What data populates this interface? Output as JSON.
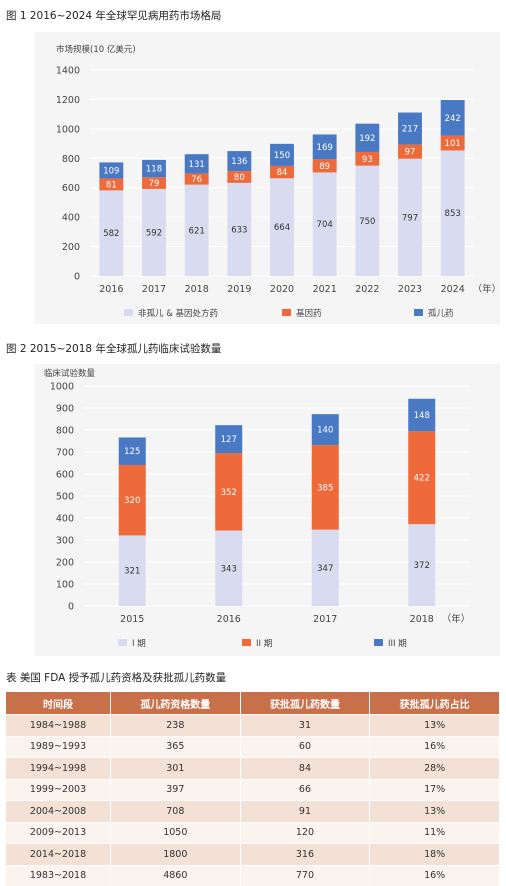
{
  "figure1": {
    "title": "图 1   2016~2024 年全球罕见病用药市场格局"
  },
  "figure2": {
    "title": "图 2   2015~2018 年全球孤儿药临床试验数量"
  },
  "table_section": {
    "title": "表    美国 FDA 授予孤儿药资格及获批孤儿药数量",
    "headers": [
      "时间段",
      "孤儿药资格数量",
      "获批孤儿药数量",
      "获批孤儿药占比"
    ],
    "rows": [
      [
        "1984~1988",
        "238",
        "31",
        "13%"
      ],
      [
        "1989~1993",
        "365",
        "60",
        "16%"
      ],
      [
        "1994~1998",
        "301",
        "84",
        "28%"
      ],
      [
        "1999~2003",
        "397",
        "66",
        "17%"
      ],
      [
        "2004~2008",
        "708",
        "91",
        "13%"
      ],
      [
        "2009~2013",
        "1050",
        "120",
        "11%"
      ],
      [
        "2014~2018",
        "1800",
        "316",
        "18%"
      ],
      [
        "1983~2018",
        "4860",
        "770",
        "16%"
      ]
    ]
  },
  "chart_data": [
    {
      "type": "bar",
      "stacked": true,
      "title": "图 1   2016~2024 年全球罕见病用药市场格局",
      "ylabel": "市场规模(10 亿美元)",
      "xlabel_suffix": "（年）",
      "categories": [
        "2016",
        "2017",
        "2018",
        "2019",
        "2020",
        "2021",
        "2022",
        "2023",
        "2024"
      ],
      "yticks": [
        0,
        200,
        400,
        600,
        800,
        1000,
        1200,
        1400
      ],
      "ylim": [
        0,
        1400
      ],
      "grid": true,
      "legend_position": "bottom",
      "series": [
        {
          "name": "非孤儿 & 基因处方药",
          "color": "#d9dcf0",
          "values": [
            582,
            592,
            621,
            633,
            664,
            704,
            750,
            797,
            853
          ]
        },
        {
          "name": "基因药",
          "color": "#ee6a3a",
          "values": [
            81,
            79,
            76,
            80,
            84,
            89,
            93,
            97,
            101
          ]
        },
        {
          "name": "孤儿药",
          "color": "#4a79c4",
          "values": [
            109,
            118,
            131,
            136,
            150,
            169,
            192,
            217,
            242
          ]
        }
      ]
    },
    {
      "type": "bar",
      "stacked": true,
      "title": "图 2   2015~2018 年全球孤儿药临床试验数量",
      "ylabel": "临床试验数量",
      "xlabel_suffix": "（年）",
      "categories": [
        "2015",
        "2016",
        "2017",
        "2018"
      ],
      "yticks": [
        0,
        100,
        200,
        300,
        400,
        500,
        600,
        700,
        800,
        900,
        1000
      ],
      "ylim": [
        0,
        1000
      ],
      "grid": true,
      "legend_position": "bottom",
      "series": [
        {
          "name": "I 期",
          "color": "#d9dcf0",
          "values": [
            321,
            343,
            347,
            372
          ]
        },
        {
          "name": "II 期",
          "color": "#ee6a3a",
          "values": [
            320,
            352,
            385,
            422
          ]
        },
        {
          "name": "III 期",
          "color": "#4a79c4",
          "values": [
            125,
            127,
            140,
            148
          ]
        }
      ]
    }
  ]
}
